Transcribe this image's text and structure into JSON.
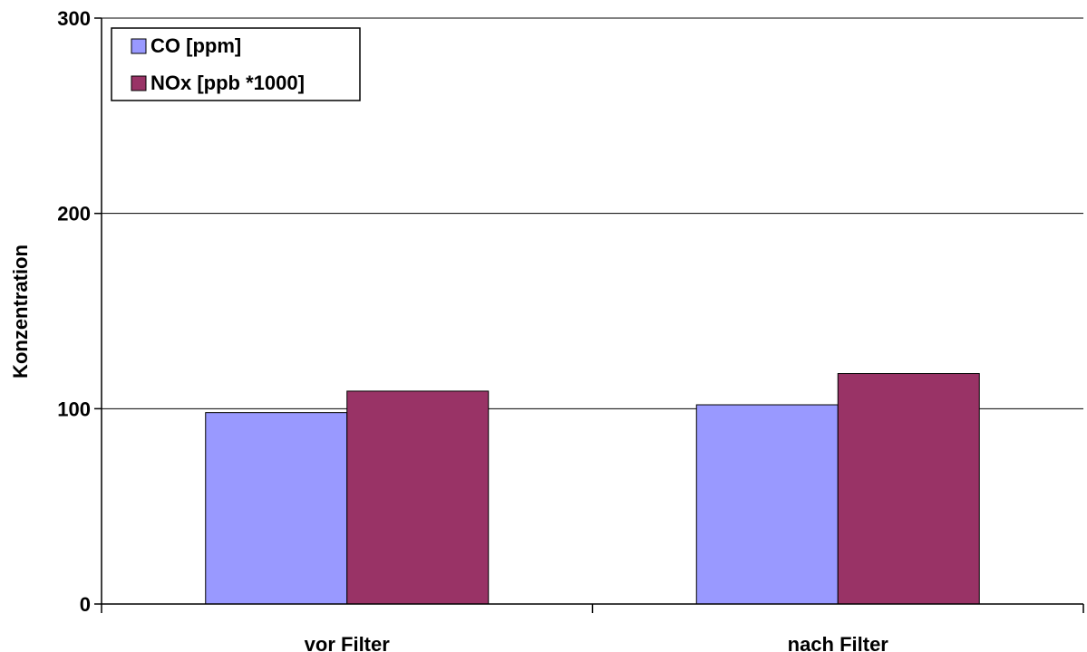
{
  "chart_data": {
    "type": "bar",
    "categories": [
      "vor Filter",
      "nach Filter"
    ],
    "series": [
      {
        "name": "CO [ppm]",
        "values": [
          98,
          102
        ],
        "color": "#9999ff"
      },
      {
        "name": "NOx [ppb *1000]",
        "values": [
          109,
          118
        ],
        "color": "#993366"
      }
    ],
    "title": "",
    "xlabel": "",
    "ylabel": "Konzentration",
    "ylim": [
      0,
      300
    ],
    "yticks": [
      "0",
      "100",
      "200",
      "300"
    ],
    "grid": true,
    "legend_position": "top-left"
  }
}
